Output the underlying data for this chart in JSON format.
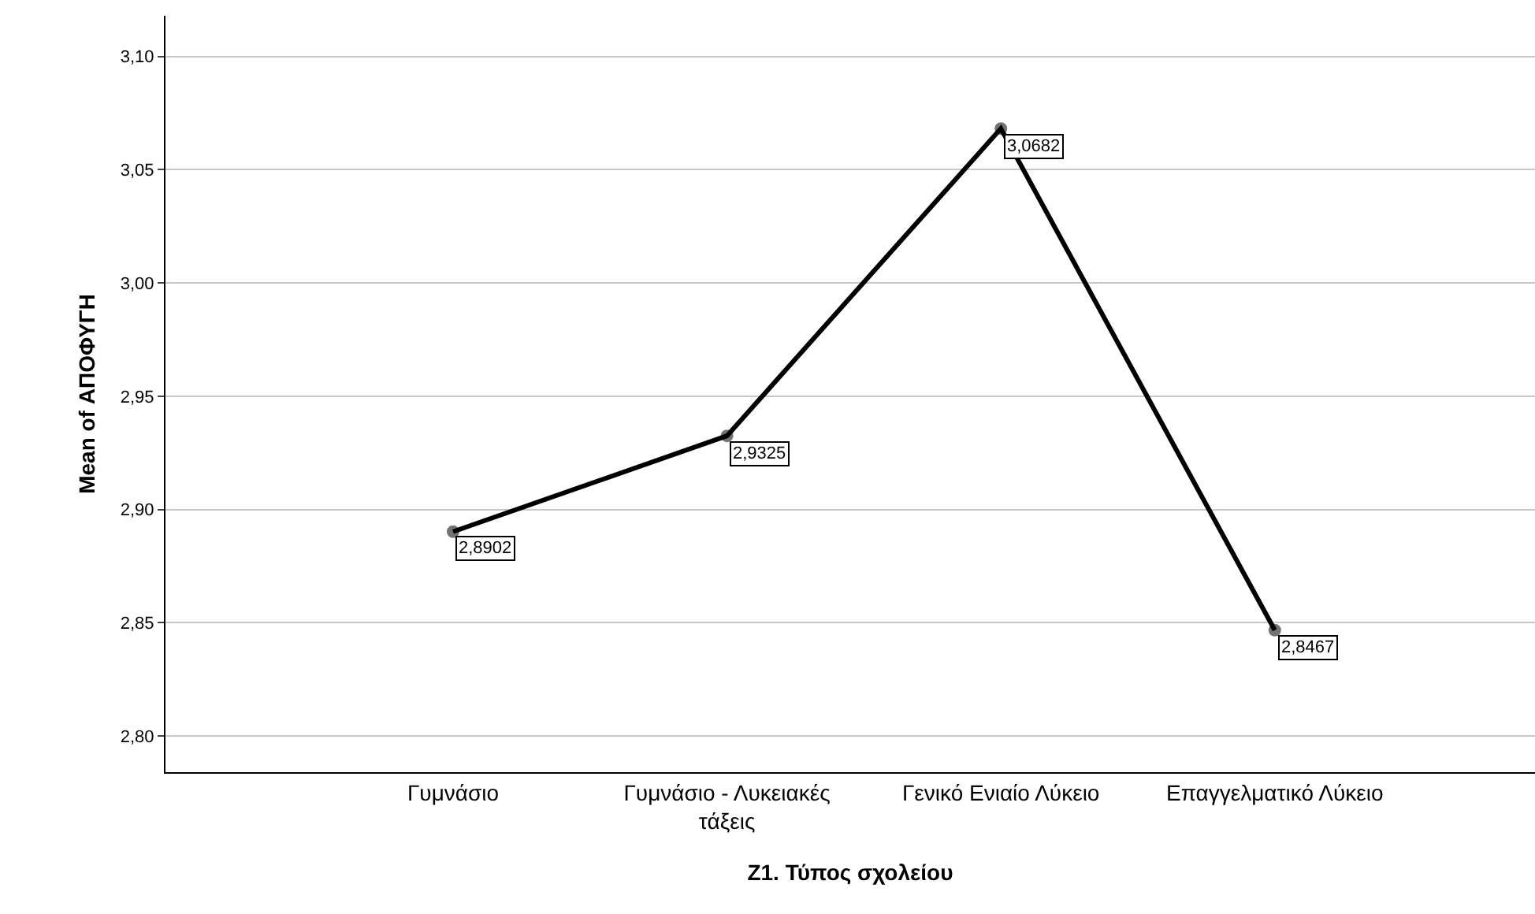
{
  "chart_data": {
    "type": "line",
    "xlabel": "Z1. Τύπος σχολείου",
    "ylabel": "Mean of ΑΠΟΦΥΓΗ",
    "categories": [
      "Γυμνάσιο",
      "Γυμνάσιο - Λυκειακές τάξεις",
      "Γενικό Ενιαίο Λύκειο",
      "Επαγγελματικό Λύκειο"
    ],
    "series": [
      {
        "color": "#000000",
        "values": [
          2.8902,
          2.9325,
          3.0682,
          2.8467
        ],
        "value_labels": [
          "2,8902",
          "2,9325",
          "3,0682",
          "2,8467"
        ]
      }
    ],
    "ylim": [
      2.784,
      3.118
    ],
    "yticks": [
      {
        "value": 2.8,
        "label": "2,80"
      },
      {
        "value": 2.85,
        "label": "2,85"
      },
      {
        "value": 2.9,
        "label": "2,90"
      },
      {
        "value": 2.95,
        "label": "2,95"
      },
      {
        "value": 3.0,
        "label": "3,00"
      },
      {
        "value": 3.05,
        "label": "3,05"
      },
      {
        "value": 3.1,
        "label": "3,10"
      }
    ],
    "grid": "y",
    "marker": "circle",
    "line_style": "solid"
  }
}
